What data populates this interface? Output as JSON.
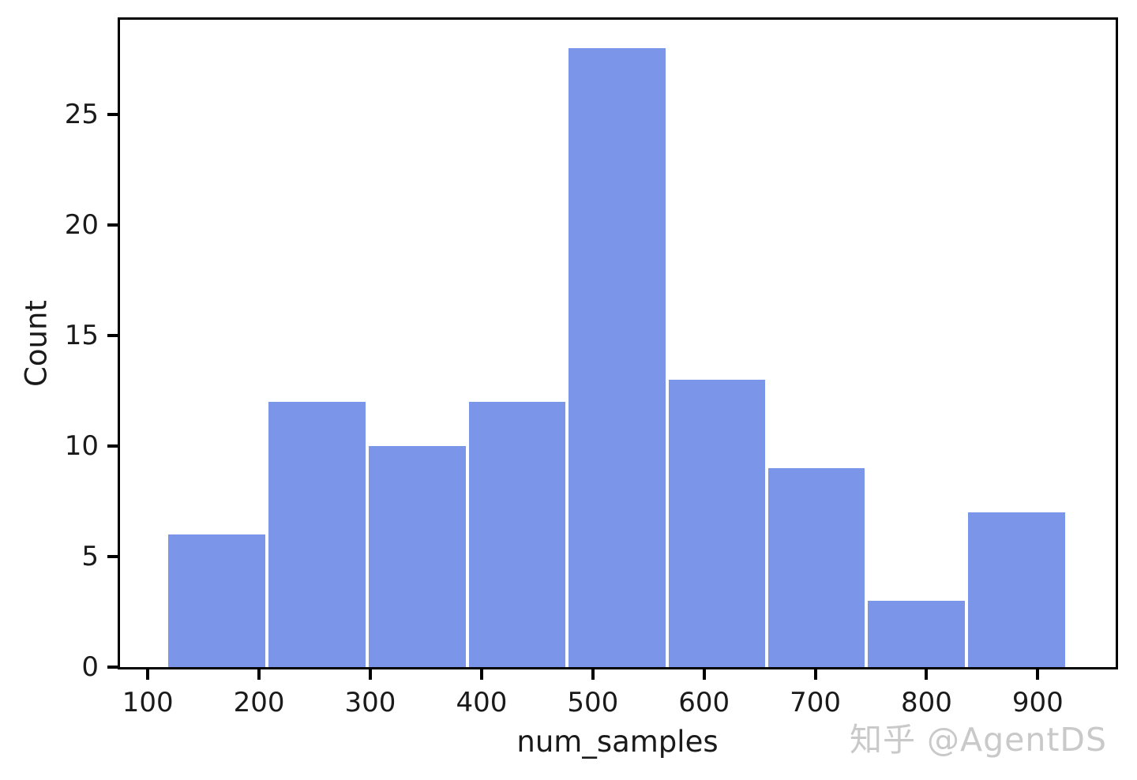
{
  "watermark": {
    "text": "知乎 @AgentDS",
    "color": "#c9c9c9"
  },
  "chart_data": {
    "type": "bar",
    "variant": "histogram",
    "title": "",
    "xlabel": "num_samples",
    "ylabel": "Count",
    "bin_edges": [
      117,
      207,
      297,
      387,
      477,
      567,
      656,
      746,
      836,
      926
    ],
    "counts": [
      6,
      12,
      10,
      12,
      28,
      13,
      9,
      3,
      7
    ],
    "x_ticks": [
      100,
      200,
      300,
      400,
      500,
      600,
      700,
      800,
      900
    ],
    "y_ticks": [
      0,
      5,
      10,
      15,
      20,
      25
    ],
    "xlim": [
      75,
      970
    ],
    "ylim": [
      0,
      29.3
    ],
    "bar_color": "#7b96e8",
    "bar_edge_color": "#ffffff",
    "axis_color": "#000000",
    "tick_label_color": "#1a1a1a",
    "grid": false
  }
}
